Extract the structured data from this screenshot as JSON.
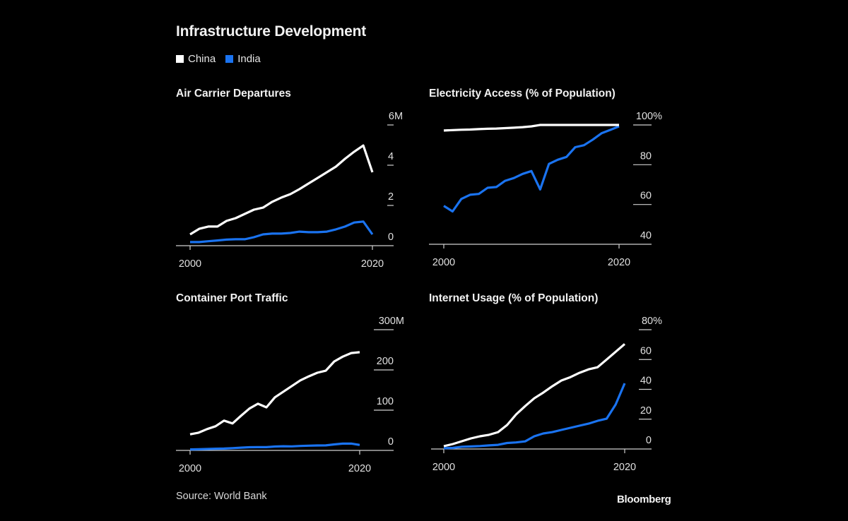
{
  "header": {
    "title": "Infrastructure Development"
  },
  "legend": [
    {
      "label": "China",
      "color": "#ffffff"
    },
    {
      "label": "India",
      "color": "#1a73f0"
    }
  ],
  "footer": {
    "source": "Source: World Bank",
    "brand": "Bloomberg"
  },
  "chart_data": [
    {
      "type": "line",
      "title": "Air Carrier Departures",
      "xlabel": "",
      "ylabel": "",
      "x": [
        2000,
        2001,
        2002,
        2003,
        2004,
        2005,
        2006,
        2007,
        2008,
        2009,
        2010,
        2011,
        2012,
        2013,
        2014,
        2015,
        2016,
        2017,
        2018,
        2019,
        2020
      ],
      "x_ticks": [
        "2000",
        "2020"
      ],
      "y_ticks": [
        0,
        2,
        4,
        6
      ],
      "y_tick_labels": [
        "0",
        "2",
        "4",
        "6M"
      ],
      "ylim": [
        0,
        6
      ],
      "unit": "M",
      "grid": false,
      "legend": "top-left",
      "series": [
        {
          "name": "China",
          "color": "#ffffff",
          "values": [
            0.56,
            0.84,
            0.95,
            0.95,
            1.23,
            1.37,
            1.58,
            1.79,
            1.89,
            2.18,
            2.39,
            2.56,
            2.81,
            3.09,
            3.37,
            3.65,
            3.93,
            4.32,
            4.67,
            4.98,
            3.65
          ]
        },
        {
          "name": "India",
          "color": "#1a73f0",
          "values": [
            0.18,
            0.18,
            0.22,
            0.26,
            0.3,
            0.32,
            0.32,
            0.42,
            0.56,
            0.6,
            0.6,
            0.63,
            0.7,
            0.67,
            0.67,
            0.7,
            0.81,
            0.95,
            1.15,
            1.2,
            0.56
          ]
        }
      ]
    },
    {
      "type": "line",
      "title": "Electricity Access (% of Population)",
      "xlabel": "",
      "ylabel": "",
      "x": [
        2000,
        2001,
        2002,
        2003,
        2004,
        2005,
        2006,
        2007,
        2008,
        2009,
        2010,
        2011,
        2012,
        2013,
        2014,
        2015,
        2016,
        2017,
        2018,
        2019,
        2020
      ],
      "x_ticks": [
        "2000",
        "2020"
      ],
      "y_ticks": [
        40,
        60,
        80,
        100
      ],
      "y_tick_labels": [
        "40",
        "60",
        "80",
        "100%"
      ],
      "ylim": [
        40,
        100
      ],
      "unit": "%",
      "grid": false,
      "series": [
        {
          "name": "China",
          "color": "#ffffff",
          "values": [
            97.2,
            97.4,
            97.6,
            97.7,
            97.9,
            98.1,
            98.2,
            98.4,
            98.6,
            98.9,
            99.3,
            100,
            100,
            100,
            100,
            100,
            100,
            100,
            100,
            100,
            100
          ]
        },
        {
          "name": "India",
          "color": "#1a73f0",
          "values": [
            59.3,
            56.5,
            62.8,
            64.9,
            65.3,
            68.4,
            68.8,
            71.9,
            73.3,
            75.4,
            76.8,
            67.6,
            80.4,
            82.5,
            83.9,
            88.8,
            89.8,
            92.6,
            95.8,
            97.5,
            99.3
          ]
        }
      ]
    },
    {
      "type": "line",
      "title": "Container Port Traffic",
      "xlabel": "",
      "ylabel": "",
      "x": [
        2000,
        2001,
        2002,
        2003,
        2004,
        2005,
        2006,
        2007,
        2008,
        2009,
        2010,
        2011,
        2012,
        2013,
        2014,
        2015,
        2016,
        2017,
        2018,
        2019,
        2020
      ],
      "x_ticks": [
        "2000",
        "2020"
      ],
      "y_ticks": [
        0,
        100,
        200,
        300
      ],
      "y_tick_labels": [
        "0",
        "100",
        "200",
        "300M"
      ],
      "ylim": [
        0,
        300
      ],
      "unit": "M",
      "grid": false,
      "series": [
        {
          "name": "China",
          "color": "#ffffff",
          "values": [
            40,
            44,
            53,
            60,
            74,
            67,
            86,
            104,
            116,
            107,
            132,
            146,
            160,
            174,
            184,
            193,
            198,
            221,
            233,
            242,
            244
          ]
        },
        {
          "name": "India",
          "color": "#1a73f0",
          "values": [
            2.5,
            2.8,
            3.5,
            4.2,
            4.5,
            5.7,
            6.9,
            7.9,
            8.1,
            8.0,
            9.7,
            10.3,
            10.0,
            11.0,
            11.7,
            12.2,
            12.5,
            15.0,
            16.9,
            17.1,
            13.5
          ]
        }
      ]
    },
    {
      "type": "line",
      "title": "Internet Usage (% of Population)",
      "xlabel": "",
      "ylabel": "",
      "x": [
        2000,
        2001,
        2002,
        2003,
        2004,
        2005,
        2006,
        2007,
        2008,
        2009,
        2010,
        2011,
        2012,
        2013,
        2014,
        2015,
        2016,
        2017,
        2018,
        2019,
        2020
      ],
      "x_ticks": [
        "2000",
        "2020"
      ],
      "y_ticks": [
        0,
        20,
        40,
        60,
        80
      ],
      "y_tick_labels": [
        "0",
        "20",
        "40",
        "60",
        "80%"
      ],
      "ylim": [
        0,
        80
      ],
      "unit": "%",
      "grid": false,
      "series": [
        {
          "name": "China",
          "color": "#ffffff",
          "values": [
            1.9,
            3.3,
            5.2,
            7.1,
            8.5,
            9.5,
            11.3,
            16.1,
            23.2,
            28.8,
            34.0,
            37.8,
            42.1,
            45.9,
            48.2,
            51.1,
            53.4,
            54.8,
            60.0,
            65.2,
            70.4
          ]
        },
        {
          "name": "India",
          "color": "#1a73f0",
          "values": [
            0.5,
            0.7,
            1.5,
            1.7,
            2.0,
            2.4,
            2.8,
            4.0,
            4.4,
            5.1,
            8.5,
            10.4,
            11.3,
            12.8,
            14.2,
            15.6,
            17.0,
            18.9,
            20.3,
            29.8,
            44.0
          ]
        }
      ]
    }
  ]
}
